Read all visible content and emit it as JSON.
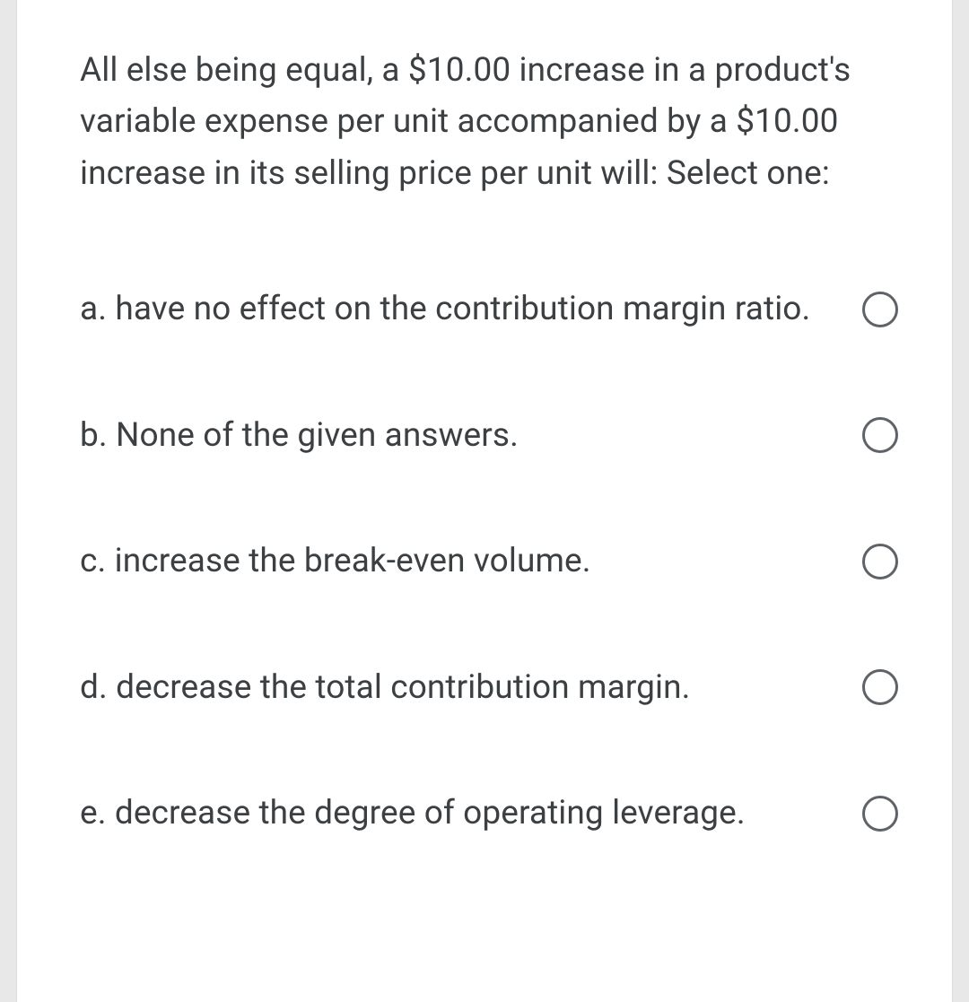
{
  "question": {
    "text": "All else being equal, a $10.00 increase in a product's variable expense per unit accompanied by a $10.00 increase in its selling price per unit will: Select one:"
  },
  "options": [
    {
      "label": "a. have no effect on the contribution margin ratio."
    },
    {
      "label": "b. None of the given answers."
    },
    {
      "label": "c. increase the break-even volume."
    },
    {
      "label": "d. decrease the total contribution margin."
    },
    {
      "label": "e. decrease the degree of operating leverage."
    }
  ],
  "colors": {
    "page_background": "#e8e8e8",
    "card_background": "#ffffff",
    "card_border": "#dadce0",
    "text": "#3c4043",
    "radio_border": "#5f6368"
  },
  "typography": {
    "font_family": "Roboto, Arial, sans-serif",
    "font_size_pt": 28,
    "line_height": 1.55,
    "font_weight": 400
  }
}
